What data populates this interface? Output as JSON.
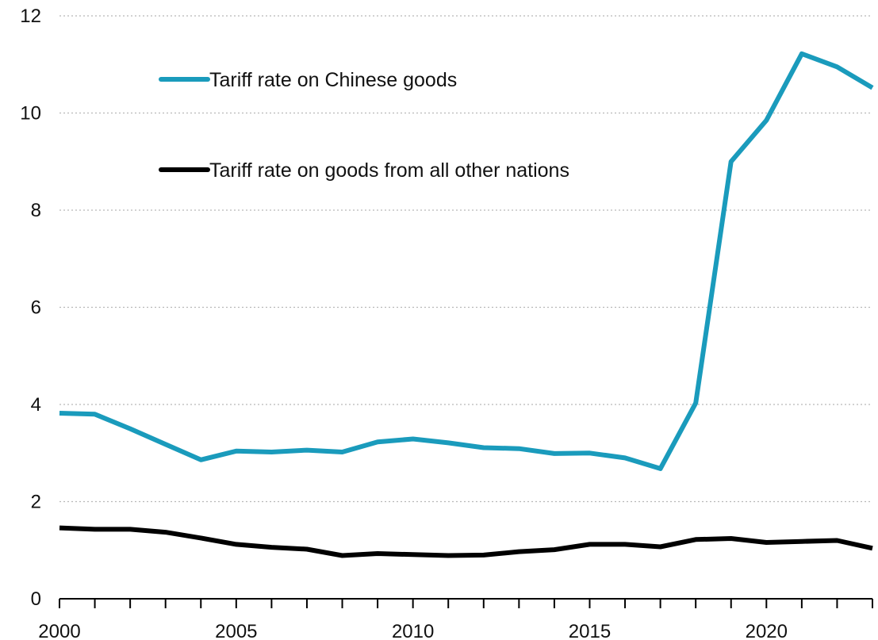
{
  "chart_data": {
    "type": "line",
    "xlim": [
      2000,
      2023
    ],
    "ylim": [
      0,
      12
    ],
    "x_ticks": [
      2000,
      2005,
      2010,
      2015,
      2020
    ],
    "x_tick_labels": [
      "2000",
      "2005",
      "2010",
      "2015",
      "2020"
    ],
    "y_ticks": [
      0,
      2,
      4,
      6,
      8,
      10,
      12
    ],
    "y_tick_labels": [
      "0",
      "2",
      "4",
      "6",
      "8",
      "10",
      "12"
    ],
    "grid": "horizontal dotted",
    "legend_position": "top-left",
    "x": [
      2000,
      2001,
      2002,
      2003,
      2004,
      2005,
      2006,
      2007,
      2008,
      2009,
      2010,
      2011,
      2012,
      2013,
      2014,
      2015,
      2016,
      2017,
      2018,
      2019,
      2020,
      2021,
      2022,
      2023
    ],
    "series": [
      {
        "name": "Tariff rate on Chinese goods",
        "color": "#1a9bbc",
        "values": [
          3.82,
          3.8,
          3.5,
          3.18,
          2.86,
          3.04,
          3.02,
          3.06,
          3.02,
          3.23,
          3.29,
          3.21,
          3.11,
          3.09,
          2.99,
          3.0,
          2.9,
          2.68,
          4.03,
          9.0,
          9.85,
          11.22,
          10.95,
          10.52
        ]
      },
      {
        "name": "Tariff rate on goods from all other nations",
        "color": "#000000",
        "values": [
          1.46,
          1.43,
          1.43,
          1.37,
          1.25,
          1.12,
          1.06,
          1.02,
          0.89,
          0.93,
          0.91,
          0.89,
          0.9,
          0.97,
          1.01,
          1.12,
          1.12,
          1.07,
          1.22,
          1.24,
          1.16,
          1.18,
          1.2,
          1.04
        ]
      }
    ]
  }
}
